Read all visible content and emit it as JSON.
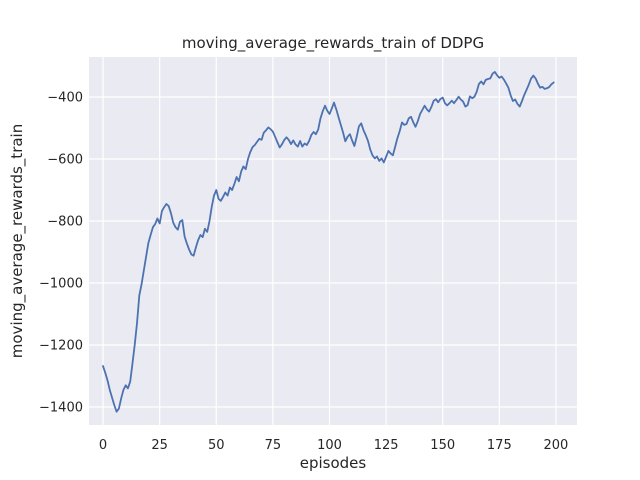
{
  "colors": {
    "figure_bg": "#ffffff",
    "plot_bg": "#eaeaf2",
    "grid": "#ffffff",
    "text": "#262626",
    "line": "#4c72b0"
  },
  "chart_data": {
    "type": "line",
    "title": "moving_average_rewards_train of DDPG",
    "xlabel": "episodes",
    "ylabel": "moving_average_rewards_train",
    "x_ticks": [
      0,
      25,
      50,
      75,
      100,
      125,
      150,
      175,
      200
    ],
    "y_ticks": [
      -400,
      -600,
      -800,
      -1000,
      -1200,
      -1400
    ],
    "xlim": [
      -6.2,
      209.3
    ],
    "ylim": [
      -1458,
      -271
    ],
    "grid": true,
    "legend": "none",
    "series": [
      {
        "name": "moving_average_rewards_train",
        "color": "#4c72b0",
        "x_start": 0,
        "x_step": 1,
        "values": [
          -1268,
          -1290,
          -1315,
          -1345,
          -1370,
          -1395,
          -1415,
          -1405,
          -1372,
          -1345,
          -1330,
          -1340,
          -1318,
          -1259,
          -1200,
          -1130,
          -1040,
          -1005,
          -960,
          -915,
          -872,
          -845,
          -820,
          -810,
          -792,
          -808,
          -768,
          -755,
          -745,
          -752,
          -775,
          -805,
          -820,
          -828,
          -802,
          -797,
          -850,
          -872,
          -892,
          -908,
          -912,
          -885,
          -862,
          -845,
          -852,
          -825,
          -835,
          -800,
          -755,
          -718,
          -700,
          -728,
          -735,
          -722,
          -708,
          -718,
          -692,
          -700,
          -680,
          -658,
          -672,
          -640,
          -624,
          -633,
          -600,
          -578,
          -562,
          -555,
          -545,
          -535,
          -538,
          -515,
          -507,
          -498,
          -504,
          -512,
          -528,
          -546,
          -563,
          -553,
          -539,
          -530,
          -538,
          -552,
          -540,
          -553,
          -560,
          -542,
          -560,
          -550,
          -555,
          -542,
          -522,
          -513,
          -520,
          -505,
          -470,
          -446,
          -428,
          -444,
          -455,
          -437,
          -418,
          -440,
          -465,
          -490,
          -515,
          -543,
          -528,
          -520,
          -540,
          -558,
          -528,
          -495,
          -485,
          -507,
          -523,
          -542,
          -570,
          -588,
          -598,
          -592,
          -606,
          -598,
          -611,
          -593,
          -574,
          -582,
          -588,
          -560,
          -533,
          -510,
          -482,
          -490,
          -487,
          -469,
          -464,
          -482,
          -496,
          -478,
          -455,
          -442,
          -428,
          -440,
          -447,
          -432,
          -412,
          -407,
          -417,
          -406,
          -402,
          -420,
          -427,
          -420,
          -412,
          -420,
          -410,
          -399,
          -408,
          -415,
          -431,
          -426,
          -398,
          -404,
          -399,
          -383,
          -358,
          -350,
          -359,
          -345,
          -342,
          -340,
          -325,
          -319,
          -330,
          -338,
          -334,
          -344,
          -356,
          -370,
          -395,
          -413,
          -408,
          -422,
          -431,
          -413,
          -394,
          -377,
          -360,
          -341,
          -331,
          -340,
          -356,
          -370,
          -367,
          -374,
          -372,
          -368,
          -359,
          -353
        ]
      }
    ]
  }
}
